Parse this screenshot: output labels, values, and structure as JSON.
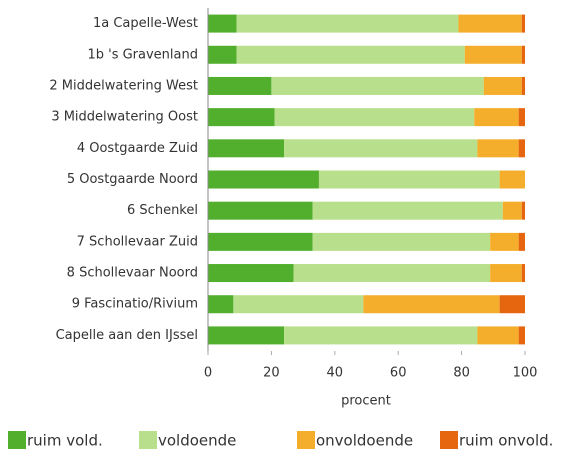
{
  "chart_data": {
    "type": "bar",
    "orientation": "horizontal",
    "stacked": true,
    "xlabel": "procent",
    "categories": [
      "1a Capelle-West",
      "1b 's Gravenland",
      "2 Middelwatering West",
      "3 Middelwatering Oost",
      "4 Oostgaarde Zuid",
      "5 Oostgaarde Noord",
      "6 Schenkel",
      "7 Schollevaar Zuid",
      "8 Schollevaar Noord",
      "9 Fascinatio/Rivium",
      "Capelle aan den IJssel"
    ],
    "series": [
      {
        "name": "ruim vold.",
        "color": "#52ae2d",
        "values": [
          9,
          9,
          20,
          21,
          24,
          35,
          33,
          33,
          27,
          8,
          24
        ]
      },
      {
        "name": "voldoende",
        "color": "#b8df8b",
        "values": [
          70,
          72,
          67,
          63,
          61,
          57,
          60,
          56,
          62,
          41,
          61
        ]
      },
      {
        "name": "onvoldoende",
        "color": "#f4ae2c",
        "values": [
          20,
          18,
          12,
          14,
          13,
          8,
          6,
          9,
          10,
          43,
          13
        ]
      },
      {
        "name": "ruim onvold.",
        "color": "#e6650f",
        "values": [
          1,
          1,
          1,
          2,
          2,
          0,
          1,
          2,
          1,
          8,
          2
        ]
      }
    ],
    "xlim": [
      0,
      100
    ],
    "xticks": [
      0,
      20,
      40,
      60,
      80,
      100
    ],
    "legend": "bottom"
  }
}
